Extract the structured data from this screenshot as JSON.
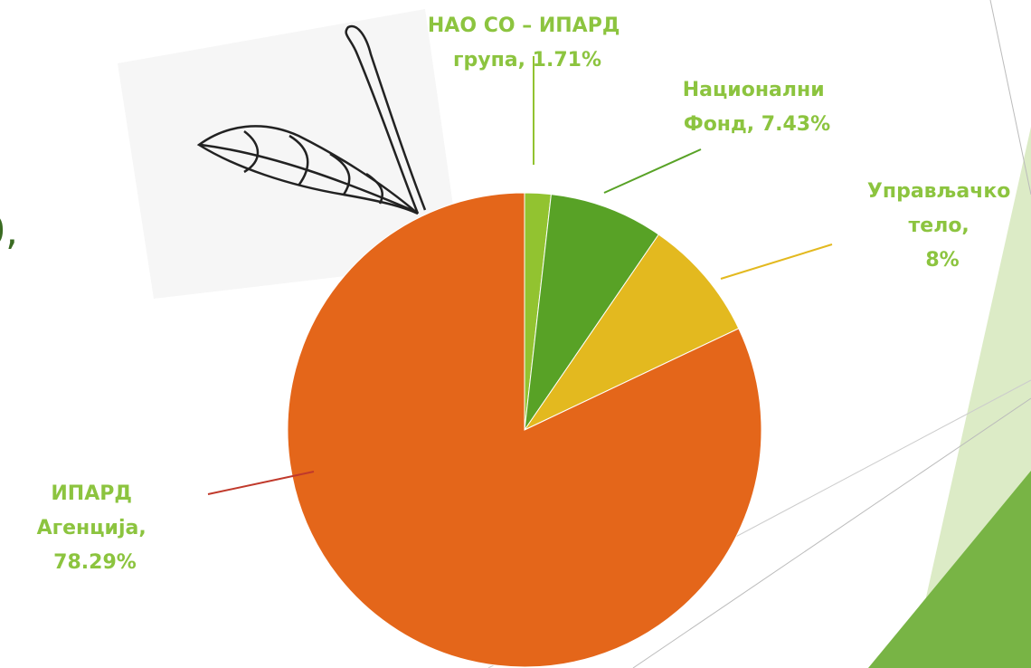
{
  "slide_text_fragment": "0,",
  "chart_data": {
    "type": "pie",
    "categories": [
      "НАО СО – ИПАРД група",
      "Национални Фонд",
      "Управљачко тело",
      "ИПАРД Агенција"
    ],
    "values": [
      1.71,
      7.43,
      8,
      78.29
    ],
    "value_labels": [
      "НАО СО – ИПАРД група, 1.71%",
      "Национални Фонд, 7.43%",
      "Управљачко тело, 8%",
      "ИПАРД Агенција, 78.29%"
    ],
    "colors": [
      "#92c330",
      "#58a226",
      "#e3b91f",
      "#e4661a"
    ],
    "label_color": "#8cc43f"
  }
}
